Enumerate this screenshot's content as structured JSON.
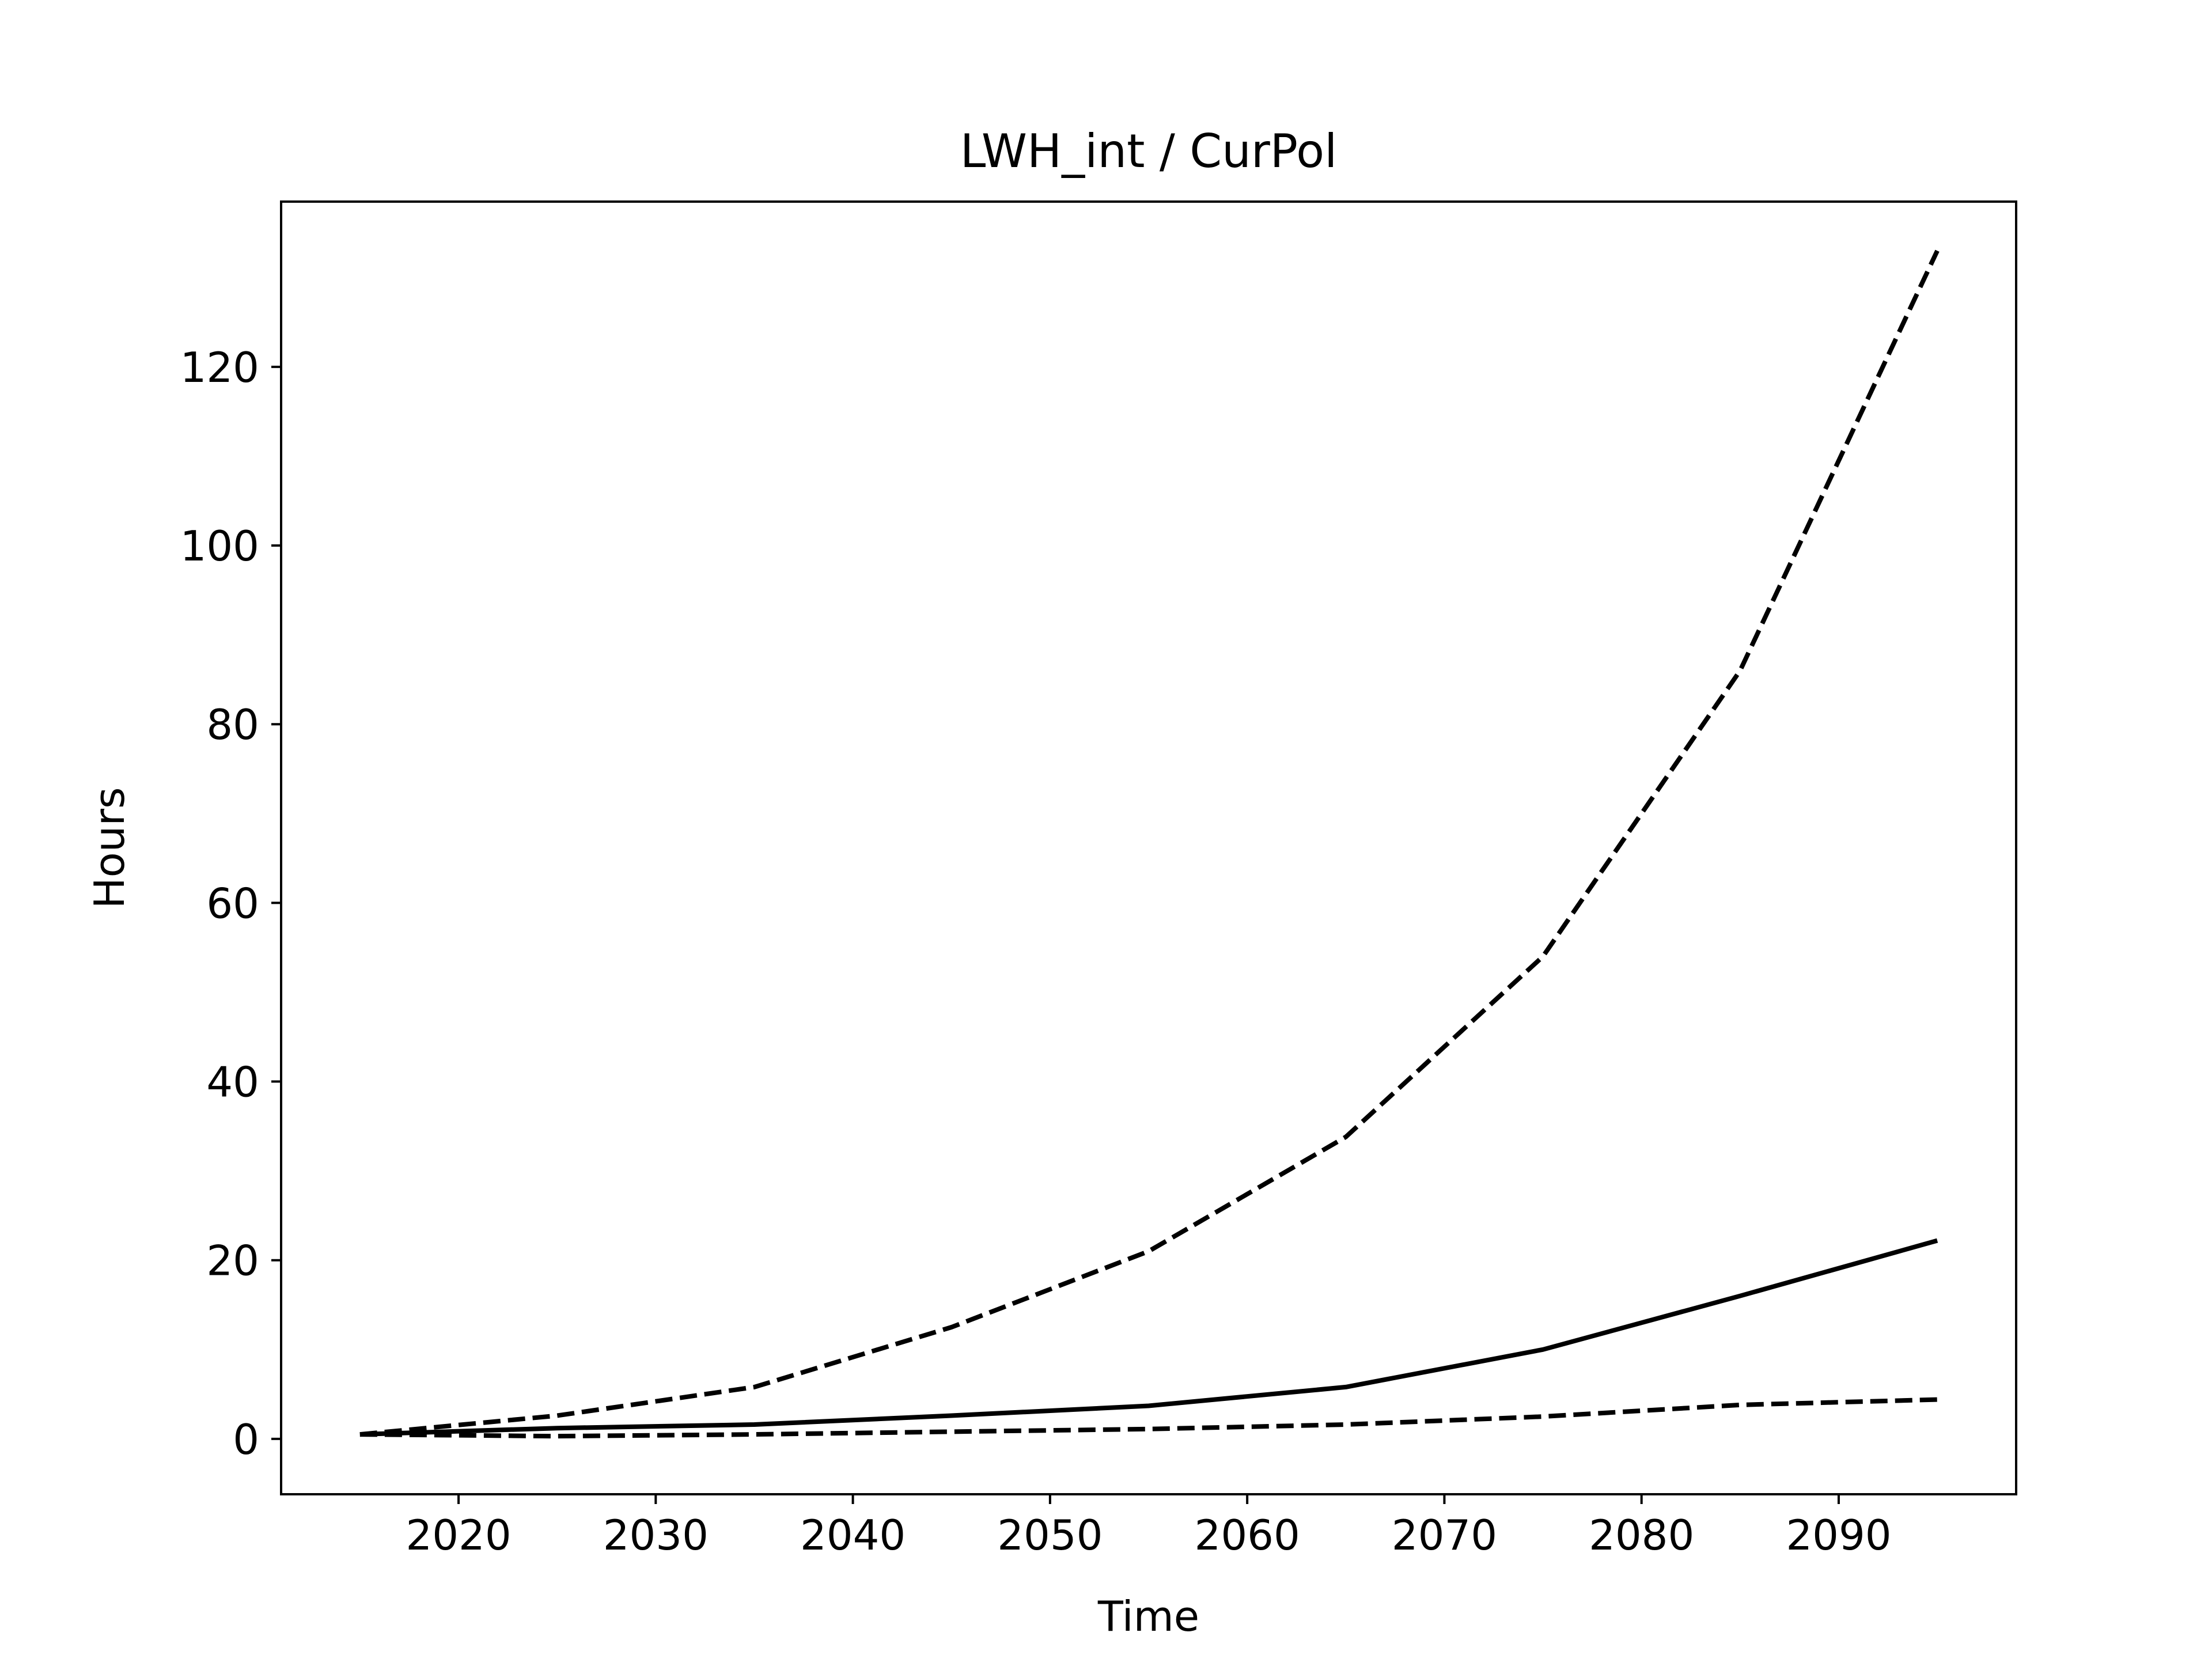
{
  "chart_data": {
    "type": "line",
    "title": "LWH_int / CurPol",
    "xlabel": "Time",
    "ylabel": "Hours",
    "xlim": [
      2011,
      2099
    ],
    "ylim": [
      -6.2,
      138.5
    ],
    "xticks": [
      2020,
      2030,
      2040,
      2050,
      2060,
      2070,
      2080,
      2090
    ],
    "yticks": [
      0,
      20,
      40,
      60,
      80,
      100,
      120
    ],
    "grid": false,
    "series": [
      {
        "style": "dashed",
        "color": "#000000",
        "x": [
          2015,
          2025,
          2035,
          2045,
          2055,
          2065,
          2075,
          2085,
          2095
        ],
        "y": [
          0.5,
          2.6,
          5.8,
          12.5,
          21.0,
          33.8,
          54.0,
          86.0,
          133.0
        ]
      },
      {
        "style": "solid",
        "color": "#000000",
        "x": [
          2015,
          2025,
          2035,
          2045,
          2055,
          2065,
          2075,
          2085,
          2095
        ],
        "y": [
          0.5,
          1.2,
          1.6,
          2.6,
          3.7,
          5.8,
          10.0,
          16.0,
          22.2
        ]
      },
      {
        "style": "dashed",
        "color": "#000000",
        "x": [
          2015,
          2025,
          2035,
          2045,
          2055,
          2065,
          2075,
          2085,
          2095
        ],
        "y": [
          0.5,
          0.3,
          0.5,
          0.8,
          1.1,
          1.6,
          2.5,
          3.8,
          4.4
        ]
      }
    ]
  }
}
